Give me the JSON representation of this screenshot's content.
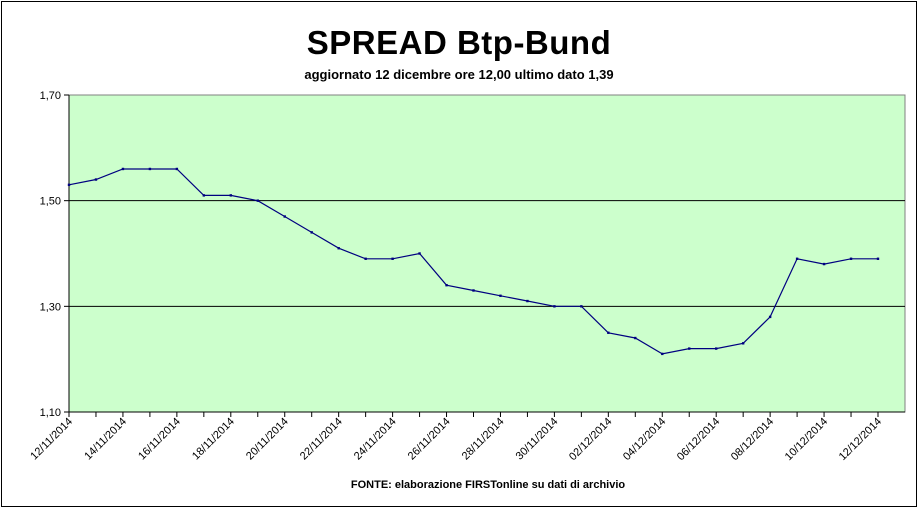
{
  "chart_data": {
    "type": "line",
    "title": "SPREAD Btp-Bund",
    "subtitle": "aggiornato 12 dicembre ore 12,00  ultimo dato  1,39",
    "source_note": "FONTE: elaborazione FIRSTonline su dati di archivio",
    "xlabel": "",
    "ylabel": "",
    "ylim": [
      1.1,
      1.7
    ],
    "y_ticks": [
      "1,10",
      "1,30",
      "1,50",
      "1,70"
    ],
    "y_tick_values": [
      1.1,
      1.3,
      1.5,
      1.7
    ],
    "gridlines": [
      1.3,
      1.5
    ],
    "x_tick_labels": [
      "12/11/2014",
      "14/11/2014",
      "16/11/2014",
      "18/11/2014",
      "20/11/2014",
      "22/11/2014",
      "24/11/2014",
      "26/11/2014",
      "28/11/2014",
      "30/11/2014",
      "02/12/2014",
      "04/12/2014",
      "06/12/2014",
      "08/12/2014",
      "10/12/2014",
      "12/12/2014"
    ],
    "x": [
      "12/11/2014",
      "13/11/2014",
      "14/11/2014",
      "15/11/2014",
      "16/11/2014",
      "17/11/2014",
      "18/11/2014",
      "19/11/2014",
      "20/11/2014",
      "21/11/2014",
      "22/11/2014",
      "23/11/2014",
      "24/11/2014",
      "25/11/2014",
      "26/11/2014",
      "27/11/2014",
      "28/11/2014",
      "29/11/2014",
      "30/11/2014",
      "01/12/2014",
      "02/12/2014",
      "03/12/2014",
      "04/12/2014",
      "05/12/2014",
      "06/12/2014",
      "07/12/2014",
      "08/12/2014",
      "09/12/2014",
      "10/12/2014",
      "11/12/2014",
      "12/12/2014"
    ],
    "series": [
      {
        "values": [
          1.53,
          1.54,
          1.56,
          1.56,
          1.56,
          1.51,
          1.51,
          1.5,
          1.47,
          1.44,
          1.41,
          1.39,
          1.39,
          1.4,
          1.34,
          1.33,
          1.32,
          1.31,
          1.3,
          1.3,
          1.25,
          1.24,
          1.21,
          1.22,
          1.22,
          1.23,
          1.28,
          1.39,
          1.38,
          1.39,
          1.39
        ]
      }
    ],
    "plot_background": "#ccffcc",
    "line_color": "#000080",
    "grid": true
  }
}
